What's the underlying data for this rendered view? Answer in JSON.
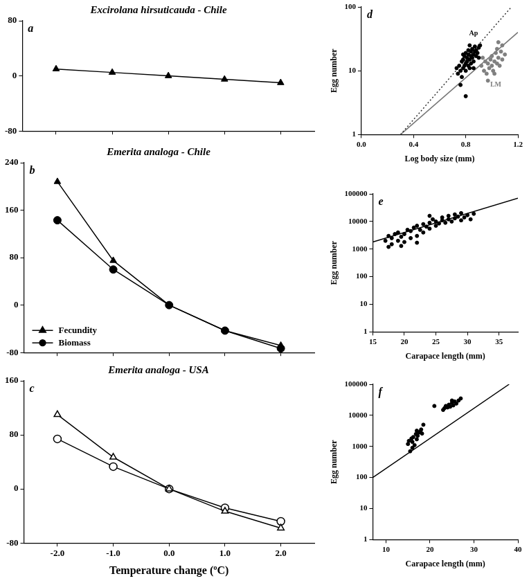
{
  "chart_data": [
    {
      "panel_label": "a",
      "type": "line",
      "title": "Excirolana hirsuticauda - Chile",
      "x": [
        -2,
        -1,
        0,
        1,
        2
      ],
      "xlim": [
        -2.6,
        2.6
      ],
      "xticks": [
        {
          "value": -2,
          "label": "-2.0"
        },
        {
          "value": -1,
          "label": "-1.0"
        },
        {
          "value": 0,
          "label": "0.0"
        },
        {
          "value": 1,
          "label": "1.0"
        },
        {
          "value": 2,
          "label": "2.0"
        }
      ],
      "ylim": [
        -80,
        80
      ],
      "yticks": [
        -80,
        0,
        80
      ],
      "tick_labels": "y",
      "grid": false,
      "series": [
        {
          "color": "#000000",
          "marker": "triangle",
          "line_style": "solid",
          "values": [
            10,
            5,
            0,
            -5,
            -10
          ]
        }
      ]
    },
    {
      "panel_label": "b",
      "type": "line",
      "title": "Emerita analoga - Chile",
      "x": [
        -2,
        -1,
        0,
        1,
        2
      ],
      "xlim": [
        -2.6,
        2.6
      ],
      "xticks": [
        {
          "value": -2,
          "label": "-2.0"
        },
        {
          "value": -1,
          "label": "-1.0"
        },
        {
          "value": 0,
          "label": "0.0"
        },
        {
          "value": 1,
          "label": "1.0"
        },
        {
          "value": 2,
          "label": "2.0"
        }
      ],
      "ylim": [
        -80,
        240
      ],
      "yticks": [
        -80,
        0,
        80,
        160,
        240
      ],
      "tick_labels": "y",
      "grid": false,
      "legend": "lower left",
      "series": [
        {
          "name": "Fecundity",
          "color": "#000000",
          "marker": "triangle",
          "line_style": "solid",
          "values": [
            208,
            75,
            0,
            -43,
            -68
          ]
        },
        {
          "name": "Biomass",
          "color": "#000000",
          "marker": "circle",
          "line_style": "solid",
          "values": [
            143,
            60,
            0,
            -43,
            -73
          ]
        }
      ]
    },
    {
      "panel_label": "c",
      "type": "line",
      "title": "Emerita analoga - USA",
      "x_label": "Temperature change (ºC)",
      "x": [
        -2,
        -1,
        0,
        1,
        2
      ],
      "xlim": [
        -2.6,
        2.6
      ],
      "xticks": [
        {
          "value": -2,
          "label": "-2.0"
        },
        {
          "value": -1,
          "label": "-1.0"
        },
        {
          "value": 0,
          "label": "0.0"
        },
        {
          "value": 1,
          "label": "1.0"
        },
        {
          "value": 2,
          "label": "2.0"
        }
      ],
      "ylim": [
        -80,
        160
      ],
      "yticks": [
        -80,
        0,
        80,
        160
      ],
      "grid": false,
      "series": [
        {
          "color": "#000000",
          "marker": "open_triangle",
          "line_style": "solid",
          "values": [
            110,
            47,
            0,
            -33,
            -58
          ]
        },
        {
          "color": "#000000",
          "marker": "open_circle",
          "line_style": "solid",
          "values": [
            74,
            33,
            0,
            -28,
            -48
          ]
        }
      ]
    },
    {
      "panel_label": "d",
      "type": "scatter",
      "x_label": "Log body size (mm)",
      "y_label": "Egg number",
      "log": "y",
      "grid": false,
      "xlim": [
        0,
        1.2
      ],
      "xticks": [
        {
          "value": 0,
          "label": "0.0"
        },
        {
          "value": 0.4,
          "label": "0.4"
        },
        {
          "value": 0.8,
          "label": "0.8"
        },
        {
          "value": 1.2,
          "label": "1.2"
        }
      ],
      "ylim": [
        1,
        100
      ],
      "yticks": [
        1,
        10,
        100
      ],
      "annotations": [
        {
          "text": "Ap",
          "x": 0.86,
          "y": 38,
          "color": "#000000"
        },
        {
          "text": "LM",
          "x": 1.03,
          "y": 6,
          "color": "#808080"
        }
      ],
      "series": [
        {
          "color": "#000000",
          "marker": "circle",
          "x": [
            0.74,
            0.75,
            0.76,
            0.77,
            0.77,
            0.78,
            0.78,
            0.79,
            0.79,
            0.8,
            0.8,
            0.8,
            0.81,
            0.81,
            0.82,
            0.82,
            0.82,
            0.83,
            0.83,
            0.84,
            0.84,
            0.84,
            0.85,
            0.85,
            0.86,
            0.86,
            0.87,
            0.87,
            0.88,
            0.88,
            0.89,
            0.9,
            0.9,
            0.91,
            0.76,
            0.8,
            0.86,
            0.83,
            0.78,
            0.73
          ],
          "values": [
            9,
            12,
            10,
            14,
            8,
            11,
            15,
            12,
            17,
            10,
            13,
            19,
            14,
            16,
            12,
            18,
            21,
            15,
            11,
            17,
            20,
            13,
            16,
            22,
            18,
            14,
            20,
            24,
            17,
            21,
            19,
            23,
            16,
            25,
            6,
            4,
            11,
            25,
            18,
            11
          ]
        },
        {
          "color": "#808080",
          "marker": "circle",
          "x": [
            0.92,
            0.94,
            0.95,
            0.96,
            0.97,
            0.98,
            0.99,
            1.0,
            1.0,
            1.01,
            1.02,
            1.03,
            1.04,
            1.04,
            1.05,
            1.06,
            1.07,
            1.08,
            1.08,
            1.1,
            0.97,
            1.02,
            1.05,
            0.93
          ],
          "values": [
            12,
            10,
            14,
            9,
            13,
            11,
            15,
            12,
            17,
            10,
            14,
            19,
            13,
            22,
            16,
            12,
            20,
            25,
            15,
            18,
            7,
            9,
            28,
            16
          ]
        },
        {
          "type": "line",
          "color": "#333333",
          "marker": "none",
          "line_style": "dotted",
          "x": [
            0.3,
            1.15
          ],
          "values": [
            1,
            100
          ]
        },
        {
          "type": "line",
          "color": "#777777",
          "marker": "none",
          "line_style": "solid",
          "x": [
            0.3,
            1.2
          ],
          "values": [
            1,
            40
          ]
        }
      ]
    },
    {
      "panel_label": "e",
      "type": "scatter",
      "x_label": "Carapace length (mm)",
      "y_label": "Egg number",
      "log": "y",
      "grid": false,
      "xlim": [
        15,
        38
      ],
      "xticks": [
        15,
        20,
        25,
        30,
        35
      ],
      "ylim": [
        1,
        100000
      ],
      "yticks": [
        1,
        10,
        100,
        1000,
        10000,
        100000
      ],
      "series": [
        {
          "color": "#000000",
          "marker": "circle",
          "x": [
            17,
            17.5,
            18,
            18,
            18.5,
            19,
            19,
            19.5,
            20,
            20,
            20.5,
            21,
            21,
            21.5,
            22,
            22,
            22.5,
            23,
            23,
            23.5,
            24,
            24,
            24.5,
            25,
            25,
            25.5,
            26,
            26,
            26.5,
            27,
            27,
            27.5,
            28,
            28,
            28.5,
            29,
            29,
            29.5,
            30,
            30.5,
            31,
            17.5,
            19.5,
            22,
            24
          ],
          "values": [
            2000,
            3000,
            1500,
            2500,
            3500,
            2000,
            4000,
            2800,
            1800,
            3500,
            5000,
            2500,
            4500,
            6000,
            3000,
            7000,
            5000,
            4000,
            8000,
            6500,
            5500,
            9000,
            12000,
            7000,
            10000,
            8500,
            11000,
            14000,
            9000,
            12000,
            16000,
            10000,
            13000,
            18000,
            15000,
            11000,
            20000,
            14000,
            17000,
            12000,
            19000,
            1200,
            1300,
            1700,
            16000
          ]
        },
        {
          "type": "line",
          "color": "#000000",
          "marker": "none",
          "line_style": "solid",
          "x": [
            15,
            38
          ],
          "values": [
            1800,
            70000
          ]
        }
      ]
    },
    {
      "panel_label": "f",
      "type": "scatter",
      "x_label": "Carapace length (mm)",
      "y_label": "Egg number",
      "log": "y",
      "grid": false,
      "xlim": [
        7,
        40
      ],
      "xticks": [
        10,
        20,
        30,
        40
      ],
      "ylim": [
        1,
        100000
      ],
      "yticks": [
        1,
        10,
        100,
        1000,
        10000,
        100000
      ],
      "series": [
        {
          "color": "#000000",
          "marker": "circle",
          "x": [
            15,
            15.2,
            15.5,
            15.8,
            16,
            16.2,
            16.5,
            16.8,
            17,
            17.2,
            17.5,
            17.8,
            18,
            18.2,
            18.5,
            16,
            17,
            21,
            23,
            23.3,
            23.6,
            24,
            24.3,
            24.6,
            25,
            25.3,
            25.6,
            26,
            26.5,
            27,
            25
          ],
          "values": [
            1200,
            1500,
            700,
            1800,
            1400,
            2000,
            1100,
            2500,
            1700,
            2200,
            2800,
            3000,
            3500,
            2600,
            5000,
            900,
            3200,
            20000,
            15000,
            17000,
            20000,
            18000,
            22000,
            19000,
            25000,
            21000,
            28000,
            24000,
            30000,
            35000,
            30000
          ]
        },
        {
          "type": "line",
          "color": "#000000",
          "marker": "none",
          "line_style": "solid",
          "x": [
            7,
            38
          ],
          "values": [
            100,
            100000
          ]
        }
      ]
    }
  ]
}
